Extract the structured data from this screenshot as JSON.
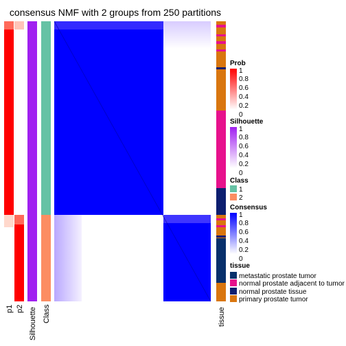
{
  "title": "consensus NMF with 2 groups from 250 partitions",
  "colors": {
    "prob_high": "#ff0000",
    "silhouette_high": "#a020f0",
    "class_1": "#66c2a5",
    "class_2": "#fc8d62",
    "consensus_high": "#0000ff",
    "tissue_metastatic": "#08306b",
    "tissue_normal_adjacent": "#e7118c",
    "tissue_normal": "#0c1e6f",
    "tissue_primary": "#d9760f"
  },
  "chart_data": {
    "type": "heatmap",
    "title": "consensus NMF with 2 groups from 250 partitions",
    "column_labels": [
      "p1",
      "p2",
      "Silhouette",
      "Class",
      "tissue"
    ],
    "legends": [
      {
        "title": "Prob",
        "type": "continuous",
        "ticks": [
          "1",
          "0.8",
          "0.6",
          "0.4",
          "0.2",
          "0"
        ]
      },
      {
        "title": "Silhouette",
        "type": "continuous",
        "ticks": [
          "1",
          "0.8",
          "0.6",
          "0.4",
          "0.2",
          "0"
        ]
      },
      {
        "title": "Class",
        "type": "discrete",
        "entries": [
          "1",
          "2"
        ]
      },
      {
        "title": "Consensus",
        "type": "continuous",
        "ticks": [
          "1",
          "0.8",
          "0.6",
          "0.4",
          "0.2",
          "0"
        ]
      },
      {
        "title": "tissue",
        "type": "discrete",
        "entries": [
          "metastatic prostate tumor",
          "normal prostate adjacent to tumor",
          "normal prostate tissue",
          "primary prostate tumor"
        ]
      }
    ],
    "groups": [
      {
        "class": "1",
        "fraction": 0.79
      },
      {
        "class": "2",
        "fraction": 0.21
      }
    ],
    "consensus_within_group": 1,
    "consensus_between_groups": 0
  }
}
